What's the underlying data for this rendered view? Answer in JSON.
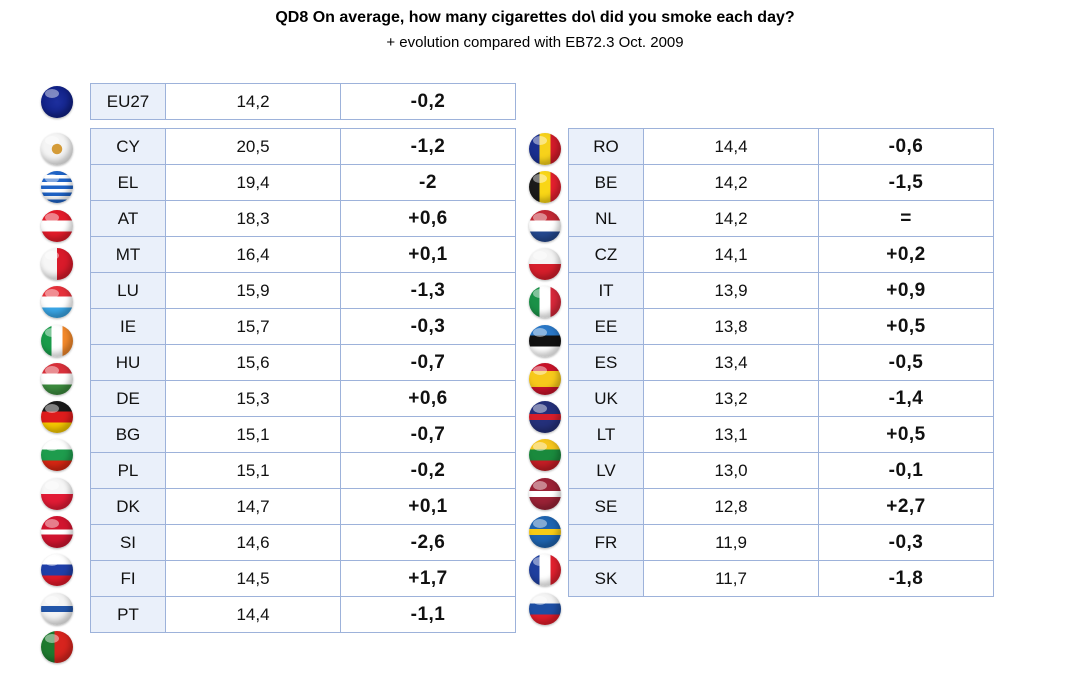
{
  "title": "QD8 On average, how many cigarettes do\\ did you smoke each day?",
  "subtitle": "+ evolution compared with EB72.3 Oct. 2009",
  "chart_data": {
    "type": "table",
    "title": "QD8 On average, how many cigarettes do\\ did you smoke each day?",
    "subtitle": "+ evolution compared with EB72.3 Oct. 2009",
    "eu": {
      "code": "EU27",
      "value": "14,2",
      "evolution": "-0,2",
      "flag": "eu-flag-icon"
    },
    "left_column": [
      {
        "code": "CY",
        "value": "20,5",
        "evolution": "-1,2",
        "flag": "cyprus-flag-icon"
      },
      {
        "code": "EL",
        "value": "19,4",
        "evolution": "-2",
        "flag": "greece-flag-icon"
      },
      {
        "code": "AT",
        "value": "18,3",
        "evolution": "+0,6",
        "flag": "austria-flag-icon"
      },
      {
        "code": "MT",
        "value": "16,4",
        "evolution": "+0,1",
        "flag": "malta-flag-icon"
      },
      {
        "code": "LU",
        "value": "15,9",
        "evolution": "-1,3",
        "flag": "luxembourg-flag-icon"
      },
      {
        "code": "IE",
        "value": "15,7",
        "evolution": "-0,3",
        "flag": "ireland-flag-icon"
      },
      {
        "code": "HU",
        "value": "15,6",
        "evolution": "-0,7",
        "flag": "hungary-flag-icon"
      },
      {
        "code": "DE",
        "value": "15,3",
        "evolution": "+0,6",
        "flag": "germany-flag-icon"
      },
      {
        "code": "BG",
        "value": "15,1",
        "evolution": "-0,7",
        "flag": "bulgaria-flag-icon"
      },
      {
        "code": "PL",
        "value": "15,1",
        "evolution": "-0,2",
        "flag": "poland-flag-icon"
      },
      {
        "code": "DK",
        "value": "14,7",
        "evolution": "+0,1",
        "flag": "denmark-flag-icon"
      },
      {
        "code": "SI",
        "value": "14,6",
        "evolution": "-2,6",
        "flag": "slovenia-flag-icon"
      },
      {
        "code": "FI",
        "value": "14,5",
        "evolution": "+1,7",
        "flag": "finland-flag-icon"
      },
      {
        "code": "PT",
        "value": "14,4",
        "evolution": "-1,1",
        "flag": "portugal-flag-icon"
      }
    ],
    "right_column": [
      {
        "code": "RO",
        "value": "14,4",
        "evolution": "-0,6",
        "flag": "romania-flag-icon"
      },
      {
        "code": "BE",
        "value": "14,2",
        "evolution": "-1,5",
        "flag": "belgium-flag-icon"
      },
      {
        "code": "NL",
        "value": "14,2",
        "evolution": "=",
        "flag": "netherlands-flag-icon"
      },
      {
        "code": "CZ",
        "value": "14,1",
        "evolution": "+0,2",
        "flag": "czechia-flag-icon"
      },
      {
        "code": "IT",
        "value": "13,9",
        "evolution": "+0,9",
        "flag": "italy-flag-icon"
      },
      {
        "code": "EE",
        "value": "13,8",
        "evolution": "+0,5",
        "flag": "estonia-flag-icon"
      },
      {
        "code": "ES",
        "value": "13,4",
        "evolution": "-0,5",
        "flag": "spain-flag-icon"
      },
      {
        "code": "UK",
        "value": "13,2",
        "evolution": "-1,4",
        "flag": "uk-flag-icon"
      },
      {
        "code": "LT",
        "value": "13,1",
        "evolution": "+0,5",
        "flag": "lithuania-flag-icon"
      },
      {
        "code": "LV",
        "value": "13,0",
        "evolution": "-0,1",
        "flag": "latvia-flag-icon"
      },
      {
        "code": "SE",
        "value": "12,8",
        "evolution": "+2,7",
        "flag": "sweden-flag-icon"
      },
      {
        "code": "FR",
        "value": "11,9",
        "evolution": "-0,3",
        "flag": "france-flag-icon"
      },
      {
        "code": "SK",
        "value": "11,7",
        "evolution": "-1,8",
        "flag": "slovakia-flag-icon"
      }
    ]
  },
  "colors": {
    "border": "#9db2da",
    "code_cell_bg": "#eaf0fa",
    "flags": {
      "eu-flag-icon": "radial-gradient(circle at 50% 50%, #1d2f9e 0%, #0b1a7a 100%)",
      "cyprus-flag-icon": "radial-gradient(circle at 50% 50%, #d49b38 0 22%, #f4f4f4 24% 100%)",
      "greece-flag-icon": "linear-gradient(#1f63c6 0 12%, #fff 12% 23%, #1f63c6 23% 34%, #fff 34% 45%, #1f63c6 45% 56%, #fff 56% 67%, #1f63c6 67% 78%, #fff 78% 89%, #1f63c6 89% 100%)",
      "austria-flag-icon": "linear-gradient(#e21b2a 0 33%, #fff 33% 67%, #e21b2a 67% 100%)",
      "malta-flag-icon": "linear-gradient(90deg, #f6f6f6 0 50%, #d91a2a 50% 100%)",
      "luxembourg-flag-icon": "linear-gradient(#e5313a 0 33%, #fff 33% 67%, #3aa6e6 67% 100%)",
      "ireland-flag-icon": "linear-gradient(90deg, #199b49 0 33%, #fff 33% 67%, #f3892b 67% 100%)",
      "hungary-flag-icon": "linear-gradient(#d8303a 0 33%, #fff 33% 67%, #3c8b3e 67% 100%)",
      "germany-flag-icon": "linear-gradient(#1a1a1a 0 33%, #dd1c1c 33% 67%, #f5c800 67% 100%)",
      "bulgaria-flag-icon": "linear-gradient(#fff 0 33%, #1e9c4d 33% 67%, #d62612 67% 100%)",
      "poland-flag-icon": "linear-gradient(#f6f6f6 0 50%, #e21b35 50% 100%)",
      "denmark-flag-icon": "linear-gradient(#d1142f 0 42%, #fff 42% 58%, #d1142f 58% 100%)",
      "slovenia-flag-icon": "linear-gradient(#fff 0 33%, #1f3fa8 33% 67%, #e0192a 67% 100%)",
      "finland-flag-icon": "linear-gradient(#f4f4f4 0 40%, #2255a8 40% 60%, #f4f4f4 60% 100%)",
      "portugal-flag-icon": "linear-gradient(90deg, #1e7a2f 0 42%, #d7241e 42% 100%)",
      "romania-flag-icon": "linear-gradient(90deg, #1a2f8f 0 33%, #f7d21b 33% 67%, #d21b2a 67% 100%)",
      "belgium-flag-icon": "linear-gradient(90deg, #1a1a1a 0 33%, #f9d616 33% 67%, #e3202e 67% 100%)",
      "netherlands-flag-icon": "linear-gradient(#c22834 0 33%, #fff 33% 67%, #24488f 67% 100%)",
      "czechia-flag-icon": "linear-gradient(#f4f4f4 0 50%, #d61e2b 50% 100%)",
      "italy-flag-icon": "linear-gradient(90deg, #1a9147 0 33%, #fff 33% 67%, #d8283a 67% 100%)",
      "estonia-flag-icon": "linear-gradient(#2a78c7 0 33%, #111 33% 67%, #fff 67% 100%)",
      "spain-flag-icon": "linear-gradient(#c8132a 0 25%, #f7c91b 25% 75%, #c8132a 75% 100%)",
      "uk-flag-icon": "linear-gradient(#24307a 0 40%, #d61e2b 40% 60%, #24307a 60% 100%)",
      "lithuania-flag-icon": "linear-gradient(#f6c51b 0 33%, #1a8a3d 33% 67%, #c41d25 67% 100%)",
      "latvia-flag-icon": "linear-gradient(#9b2236 0 40%, #fff 40% 60%, #9b2236 60% 100%)",
      "sweden-flag-icon": "linear-gradient(#1e64b0 0 40%, #f7cb17 40% 60%, #1e64b0 60% 100%)",
      "france-flag-icon": "linear-gradient(90deg, #1f3f9e 0 33%, #fff 33% 67%, #e1202e 67% 100%)",
      "slovakia-flag-icon": "linear-gradient(#f4f4f4 0 33%, #1d4ea3 33% 67%, #e11c2a 67% 100%)"
    }
  }
}
